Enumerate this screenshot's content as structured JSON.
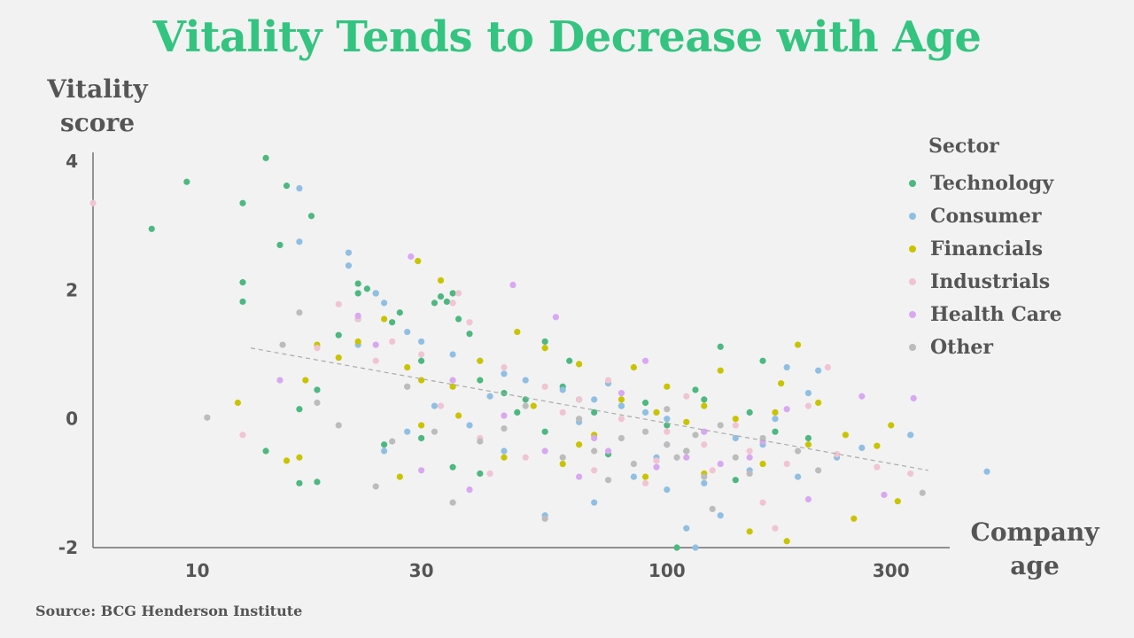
{
  "chart_data": {
    "type": "scatter",
    "title": "Vitality Tends to Decrease with Age",
    "ylabel_lines": [
      "Vitality",
      "score"
    ],
    "xlabel_lines": [
      "Company",
      "age"
    ],
    "x_scale": "log",
    "xlim": [
      6,
      400
    ],
    "ylim": [
      -2,
      4
    ],
    "x_ticks": [
      10,
      30,
      100,
      300
    ],
    "x_tick_labels": [
      "10",
      "30",
      "100",
      "300"
    ],
    "y_ticks": [
      4,
      2,
      0,
      -2
    ],
    "y_tick_labels": [
      "4",
      "2",
      "0",
      "-2"
    ],
    "legend_title": "Sector",
    "legend_position": "right",
    "trendline": {
      "x": [
        13,
        360
      ],
      "y": [
        1.1,
        -0.8
      ],
      "style": "dashed",
      "color": "#aaaaaa"
    },
    "series": [
      {
        "name": "Technology",
        "color": "#4db880",
        "points": [
          [
            8,
            2.95
          ],
          [
            9.5,
            3.68
          ],
          [
            14,
            4.05
          ],
          [
            15.5,
            3.62
          ],
          [
            17.5,
            3.15
          ],
          [
            12.5,
            3.35
          ],
          [
            12.5,
            2.12
          ],
          [
            12.5,
            1.82
          ],
          [
            15,
            2.7
          ],
          [
            16.5,
            0.15
          ],
          [
            14,
            -0.5
          ],
          [
            18,
            0.45
          ],
          [
            20,
            1.3
          ],
          [
            22,
            2.1
          ],
          [
            22,
            1.95
          ],
          [
            23,
            2.02
          ],
          [
            24,
            1.95
          ],
          [
            22,
            1.55
          ],
          [
            26,
            1.5
          ],
          [
            27,
            1.65
          ],
          [
            30,
            0.9
          ],
          [
            32,
            1.8
          ],
          [
            33,
            1.9
          ],
          [
            34,
            1.82
          ],
          [
            35,
            1.95
          ],
          [
            36,
            1.55
          ],
          [
            38,
            1.32
          ],
          [
            40,
            0.6
          ],
          [
            45,
            0.4
          ],
          [
            50,
            0.3
          ],
          [
            55,
            1.2
          ],
          [
            60,
            0.5
          ],
          [
            65,
            0.3
          ],
          [
            70,
            0.1
          ],
          [
            80,
            0.2
          ],
          [
            90,
            0.25
          ],
          [
            100,
            -0.1
          ],
          [
            110,
            -0.5
          ],
          [
            120,
            0.3
          ],
          [
            130,
            1.12
          ],
          [
            150,
            0.1
          ],
          [
            170,
            -0.2
          ],
          [
            16.5,
            -1.0
          ],
          [
            18,
            -0.98
          ],
          [
            25,
            -0.4
          ],
          [
            30,
            -0.3
          ],
          [
            35,
            -0.75
          ],
          [
            40,
            -0.85
          ],
          [
            55,
            -0.2
          ],
          [
            75,
            -0.55
          ],
          [
            105,
            -2.0
          ],
          [
            140,
            -0.95
          ],
          [
            160,
            0.9
          ],
          [
            200,
            -0.3
          ],
          [
            115,
            0.45
          ],
          [
            62,
            0.9
          ],
          [
            48,
            0.1
          ]
        ]
      },
      {
        "name": "Consumer",
        "color": "#8fbfe3",
        "points": [
          [
            16.5,
            3.58
          ],
          [
            16.5,
            2.75
          ],
          [
            21,
            2.58
          ],
          [
            21,
            2.38
          ],
          [
            24,
            1.95
          ],
          [
            22,
            1.15
          ],
          [
            25,
            1.8
          ],
          [
            28,
            1.35
          ],
          [
            30,
            1.2
          ],
          [
            35,
            1.0
          ],
          [
            40,
            0.9
          ],
          [
            45,
            0.7
          ],
          [
            50,
            0.6
          ],
          [
            60,
            0.45
          ],
          [
            70,
            0.3
          ],
          [
            80,
            0.2
          ],
          [
            90,
            0.1
          ],
          [
            100,
            0.0
          ],
          [
            120,
            -0.2
          ],
          [
            140,
            -0.3
          ],
          [
            160,
            -0.4
          ],
          [
            180,
            0.8
          ],
          [
            200,
            0.4
          ],
          [
            230,
            -0.6
          ],
          [
            260,
            -0.45
          ],
          [
            330,
            -0.25
          ],
          [
            480,
            -0.82
          ],
          [
            110,
            -1.7
          ],
          [
            115,
            -2.0
          ],
          [
            55,
            -1.5
          ],
          [
            70,
            -1.3
          ],
          [
            100,
            -1.1
          ],
          [
            130,
            -1.5
          ],
          [
            25,
            -0.5
          ],
          [
            28,
            -0.2
          ],
          [
            32,
            0.2
          ],
          [
            45,
            -0.5
          ],
          [
            85,
            -0.9
          ],
          [
            150,
            -0.8
          ],
          [
            190,
            -0.9
          ],
          [
            210,
            0.75
          ],
          [
            65,
            -0.05
          ],
          [
            95,
            -0.6
          ],
          [
            75,
            0.55
          ],
          [
            120,
            -1.0
          ],
          [
            170,
            0.0
          ],
          [
            42,
            0.35
          ],
          [
            38,
            -0.1
          ]
        ]
      },
      {
        "name": "Financials",
        "color": "#c9c400",
        "points": [
          [
            29.5,
            2.45
          ],
          [
            33,
            2.15
          ],
          [
            12.2,
            0.25
          ],
          [
            15.5,
            -0.65
          ],
          [
            17,
            0.6
          ],
          [
            18,
            1.15
          ],
          [
            20,
            0.95
          ],
          [
            22,
            1.2
          ],
          [
            25,
            1.55
          ],
          [
            28,
            0.8
          ],
          [
            30,
            0.6
          ],
          [
            35,
            0.5
          ],
          [
            40,
            0.9
          ],
          [
            48,
            1.35
          ],
          [
            55,
            1.1
          ],
          [
            65,
            0.85
          ],
          [
            80,
            0.3
          ],
          [
            100,
            0.5
          ],
          [
            120,
            0.2
          ],
          [
            140,
            0.0
          ],
          [
            170,
            0.1
          ],
          [
            190,
            1.15
          ],
          [
            210,
            0.25
          ],
          [
            240,
            -0.25
          ],
          [
            280,
            -0.42
          ],
          [
            300,
            -0.1
          ],
          [
            310,
            -1.28
          ],
          [
            250,
            -1.55
          ],
          [
            180,
            -1.9
          ],
          [
            150,
            -1.75
          ],
          [
            90,
            -0.9
          ],
          [
            60,
            -0.7
          ],
          [
            45,
            -0.6
          ],
          [
            27,
            -0.9
          ],
          [
            30,
            -0.1
          ],
          [
            70,
            -0.25
          ],
          [
            110,
            -0.05
          ],
          [
            130,
            0.75
          ],
          [
            160,
            -0.7
          ],
          [
            200,
            -0.4
          ],
          [
            85,
            0.8
          ],
          [
            52,
            0.2
          ],
          [
            36,
            0.05
          ],
          [
            120,
            -0.85
          ],
          [
            175,
            0.55
          ],
          [
            65,
            -0.4
          ],
          [
            16.5,
            -0.6
          ],
          [
            95,
            0.1
          ]
        ]
      },
      {
        "name": "Industrials",
        "color": "#f0c4d2",
        "points": [
          [
            6,
            3.35
          ],
          [
            12.5,
            -0.25
          ],
          [
            18,
            1.1
          ],
          [
            20,
            1.78
          ],
          [
            22,
            1.55
          ],
          [
            26,
            1.2
          ],
          [
            30,
            1.0
          ],
          [
            35,
            1.8
          ],
          [
            36,
            1.95
          ],
          [
            38,
            1.5
          ],
          [
            45,
            0.8
          ],
          [
            55,
            0.5
          ],
          [
            65,
            0.3
          ],
          [
            80,
            0.0
          ],
          [
            100,
            -0.2
          ],
          [
            120,
            -0.4
          ],
          [
            150,
            -0.5
          ],
          [
            180,
            -0.7
          ],
          [
            220,
            0.8
          ],
          [
            280,
            -0.75
          ],
          [
            330,
            -0.85
          ],
          [
            170,
            -1.7
          ],
          [
            160,
            -1.3
          ],
          [
            90,
            -1.0
          ],
          [
            70,
            -0.8
          ],
          [
            50,
            -0.6
          ],
          [
            40,
            -0.3
          ],
          [
            33,
            0.2
          ],
          [
            28,
            0.5
          ],
          [
            24,
            0.9
          ],
          [
            60,
            0.1
          ],
          [
            110,
            0.35
          ],
          [
            140,
            -0.1
          ],
          [
            200,
            0.2
          ],
          [
            230,
            -0.55
          ],
          [
            75,
            0.6
          ],
          [
            95,
            -0.65
          ],
          [
            125,
            -0.8
          ],
          [
            42,
            -0.85
          ]
        ]
      },
      {
        "name": "Health Care",
        "color": "#d8a8f0",
        "points": [
          [
            28.5,
            2.52
          ],
          [
            47,
            2.08
          ],
          [
            58,
            1.58
          ],
          [
            22,
            1.6
          ],
          [
            24,
            1.15
          ],
          [
            15,
            0.6
          ],
          [
            30,
            -0.8
          ],
          [
            38,
            -1.1
          ],
          [
            55,
            -0.5
          ],
          [
            70,
            -0.3
          ],
          [
            90,
            0.9
          ],
          [
            100,
            -0.4
          ],
          [
            110,
            -0.6
          ],
          [
            130,
            -0.7
          ],
          [
            150,
            -0.6
          ],
          [
            260,
            0.35
          ],
          [
            335,
            0.32
          ],
          [
            290,
            -1.18
          ],
          [
            200,
            -1.25
          ],
          [
            180,
            0.15
          ],
          [
            80,
            0.4
          ],
          [
            65,
            -0.9
          ],
          [
            45,
            0.05
          ],
          [
            35,
            0.6
          ],
          [
            120,
            -0.2
          ],
          [
            95,
            -0.75
          ],
          [
            160,
            -0.35
          ],
          [
            75,
            -0.5
          ]
        ]
      },
      {
        "name": "Other",
        "color": "#bcbcbc",
        "points": [
          [
            10.5,
            0.02
          ],
          [
            15.2,
            1.15
          ],
          [
            16.5,
            1.65
          ],
          [
            18,
            0.25
          ],
          [
            20,
            -0.1
          ],
          [
            24,
            -1.05
          ],
          [
            26,
            -0.35
          ],
          [
            28,
            0.5
          ],
          [
            32,
            -0.2
          ],
          [
            35,
            -1.3
          ],
          [
            40,
            -0.35
          ],
          [
            50,
            0.2
          ],
          [
            55,
            -1.55
          ],
          [
            60,
            -0.6
          ],
          [
            70,
            -0.5
          ],
          [
            80,
            -0.3
          ],
          [
            90,
            -0.2
          ],
          [
            100,
            -0.4
          ],
          [
            110,
            -0.5
          ],
          [
            120,
            -0.9
          ],
          [
            125,
            -1.4
          ],
          [
            140,
            -0.6
          ],
          [
            160,
            -0.3
          ],
          [
            190,
            -0.5
          ],
          [
            210,
            -0.8
          ],
          [
            350,
            -1.15
          ],
          [
            100,
            0.15
          ],
          [
            85,
            -0.7
          ],
          [
            65,
            0.0
          ],
          [
            45,
            -0.15
          ],
          [
            115,
            -0.25
          ],
          [
            130,
            -0.1
          ],
          [
            150,
            -0.85
          ],
          [
            75,
            -0.95
          ],
          [
            105,
            -0.6
          ]
        ]
      }
    ]
  },
  "source": "Source: BCG Henderson Institute"
}
